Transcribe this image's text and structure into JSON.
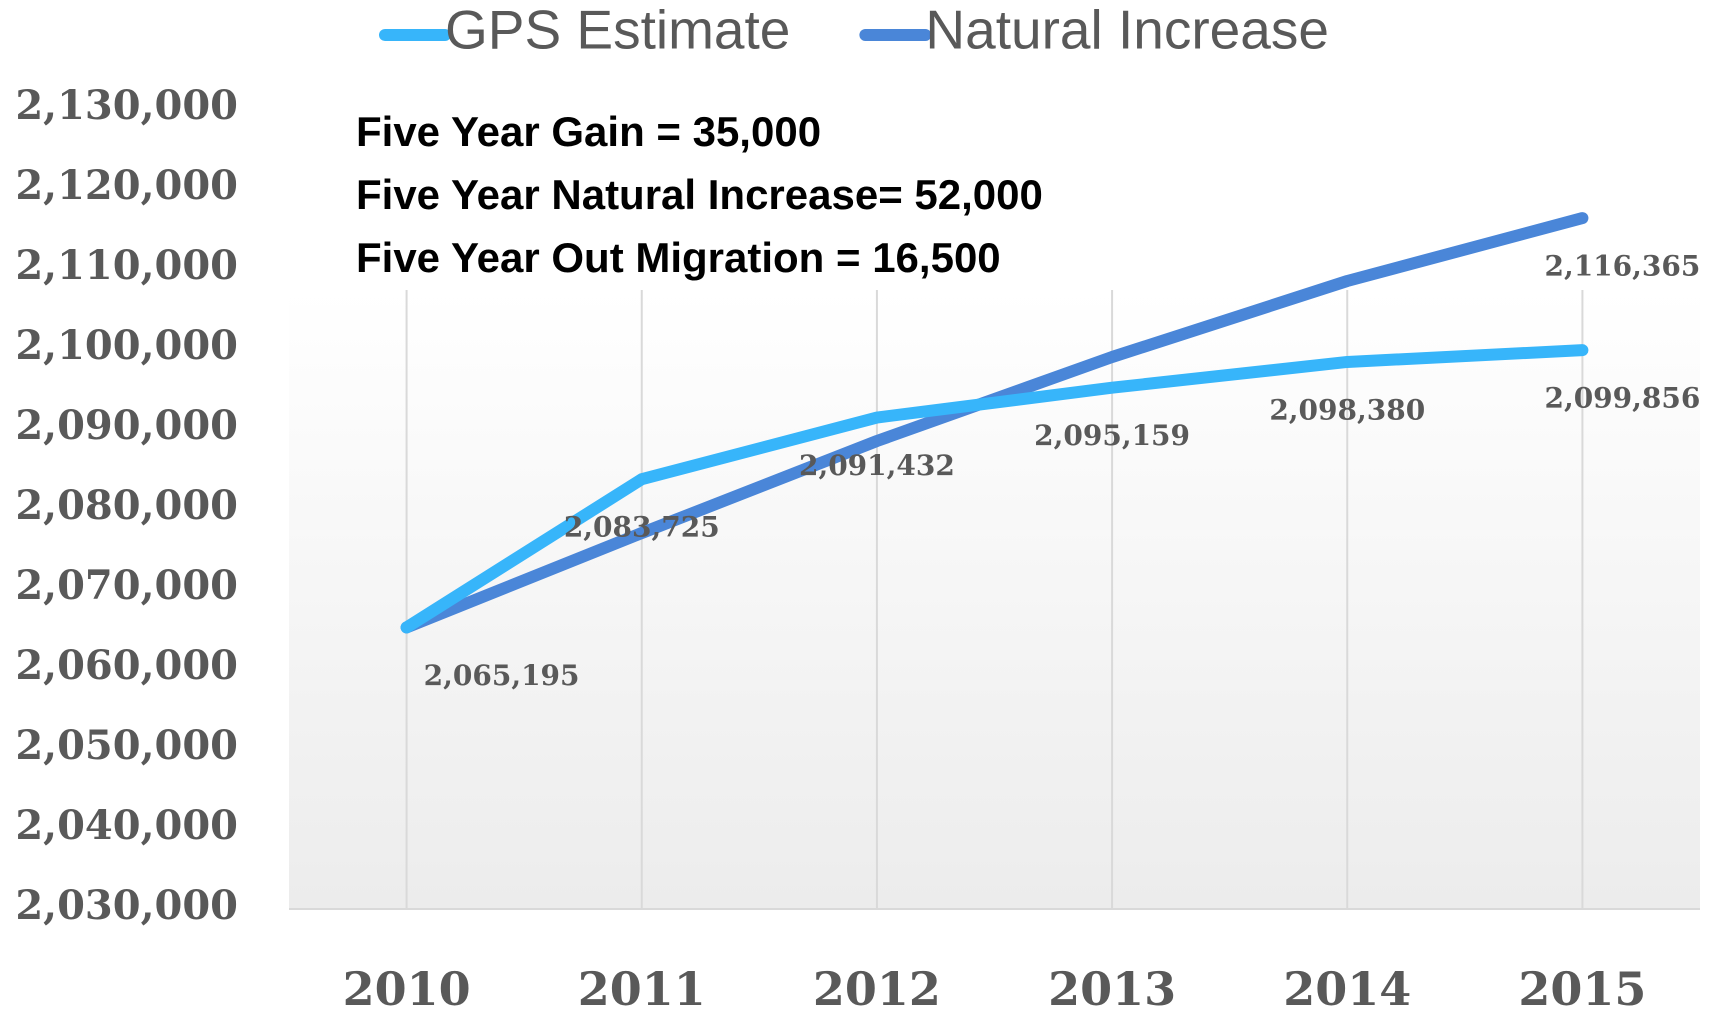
{
  "chart_data": {
    "type": "line",
    "categories": [
      "2010",
      "2011",
      "2012",
      "2013",
      "2014",
      "2015"
    ],
    "series": [
      {
        "name": "GPS Estimate",
        "color": "#37b5fa",
        "values": [
          2065195,
          2083725,
          2091432,
          2095159,
          2098380,
          2099856
        ],
        "value_labels": [
          "2,065,195",
          "2,083,725",
          "2,091,432",
          "2,095,159",
          "2,098,380",
          "2,099,856"
        ]
      },
      {
        "name": "Natural Increase",
        "color": "#4a86d8",
        "values": [
          2065195,
          2077000,
          2088500,
          2099000,
          2108500,
          2116365
        ],
        "value_labels": [
          null,
          null,
          null,
          null,
          null,
          "2,116,365"
        ]
      }
    ],
    "annotations": [
      "Five Year Gain = 35,000",
      "Five Year Natural Increase= 52,000",
      "Five Year Out Migration = 16,500"
    ],
    "ylim": [
      2030000,
      2130000
    ],
    "yticks": [
      {
        "value": 2030000,
        "label": "2,030,000"
      },
      {
        "value": 2040000,
        "label": "2,040,000"
      },
      {
        "value": 2050000,
        "label": "2,050,000"
      },
      {
        "value": 2060000,
        "label": "2,060,000"
      },
      {
        "value": 2070000,
        "label": "2,070,000"
      },
      {
        "value": 2080000,
        "label": "2,080,000"
      },
      {
        "value": 2090000,
        "label": "2,090,000"
      },
      {
        "value": 2100000,
        "label": "2,100,000"
      },
      {
        "value": 2110000,
        "label": "2,110,000"
      },
      {
        "value": 2120000,
        "label": "2,120,000"
      },
      {
        "value": 2130000,
        "label": "2,130,000"
      }
    ],
    "grid": "x",
    "legend": "top"
  }
}
